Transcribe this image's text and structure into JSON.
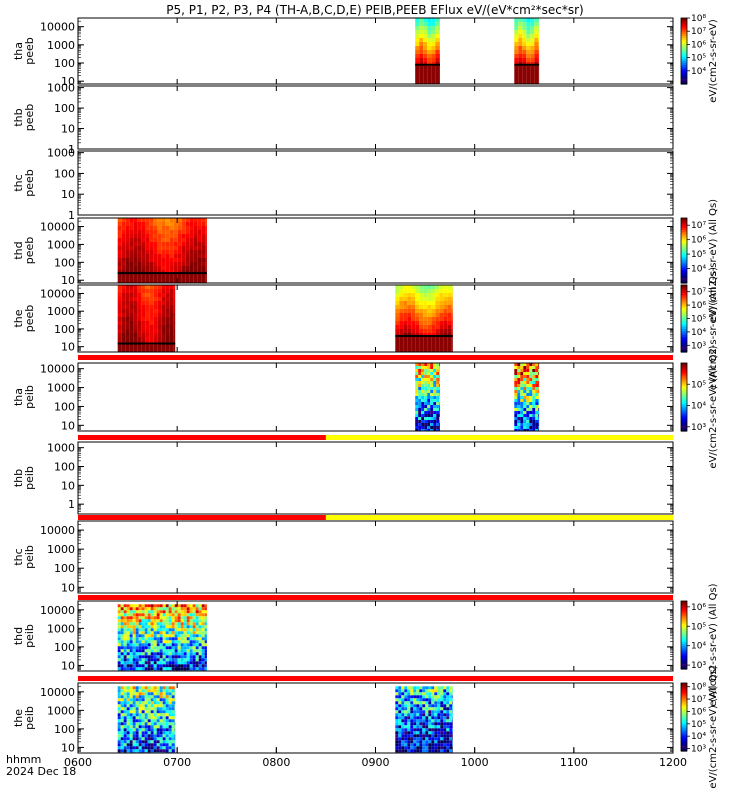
{
  "title": "P5, P1, P2, P3, P4 (TH-A,B,C,D,E) PEIB,PEEB EFlux eV/(eV*cm²*sec*sr)",
  "footer": {
    "axis_caption": "hhmm",
    "date": "2024 Dec 18"
  },
  "colors": {
    "bar_red": "#ff0000",
    "bar_yellow": "#ffff00",
    "no_data": "#ffffff"
  },
  "chart_data": {
    "type": "heatmap",
    "x_axis": {
      "ticks": [
        "0600",
        "0700",
        "0800",
        "0900",
        "1000",
        "1100",
        "1200"
      ],
      "range_hhmm": [
        "0600",
        "1200"
      ]
    },
    "y_scale": "log",
    "panels": [
      {
        "probe": "tha",
        "species": "peeb",
        "ylabel": "tha\npeeb",
        "ylim": [
          7,
          30000
        ],
        "yticks": [
          "10",
          "100",
          "1000",
          "10000"
        ],
        "colorbar": {
          "label": "eV/(cm2-s-sr-eV)",
          "ticks": [
            "10⁴",
            "10⁵",
            "10⁶",
            "10⁷",
            "10⁸"
          ],
          "range_exp": [
            3,
            8
          ]
        },
        "intervals": [
          {
            "start": 9.4,
            "end": 9.65,
            "lo": 7,
            "hi": 30000,
            "cut": 80,
            "level_low": 0.93,
            "level_high": 0.4,
            "pattern": "smooth"
          },
          {
            "start": 10.4,
            "end": 10.65,
            "lo": 7,
            "hi": 30000,
            "cut": 80,
            "level_low": 0.92,
            "level_high": 0.42,
            "pattern": "smooth"
          }
        ]
      },
      {
        "probe": "thb",
        "species": "peeb",
        "ylabel": "thb\npeeb",
        "ylim": [
          1,
          1200
        ],
        "yticks": [
          "1",
          "10",
          "100",
          "1000"
        ],
        "intervals": []
      },
      {
        "probe": "thc",
        "species": "peeb",
        "ylabel": "thc\npeeb",
        "ylim": [
          1,
          1200
        ],
        "yticks": [
          "1",
          "10",
          "100",
          "1000"
        ],
        "intervals": []
      },
      {
        "probe": "thd",
        "species": "peeb",
        "ylabel": "thd\npeeb",
        "ylim": [
          7,
          30000
        ],
        "yticks": [
          "10",
          "100",
          "1000",
          "10000"
        ],
        "colorbar": {
          "label": "eV/(cm2-s-sr-eV) (All Qs)",
          "ticks": [
            "10⁴",
            "10⁵",
            "10⁶",
            "10⁷"
          ],
          "range_exp": [
            3,
            7.5
          ]
        },
        "intervals": [
          {
            "start": 6.4,
            "end": 7.3,
            "lo": 7,
            "hi": 30000,
            "cut": 25,
            "level_low": 0.97,
            "level_high": 0.8,
            "pattern": "smooth"
          }
        ]
      },
      {
        "probe": "the",
        "species": "peeb",
        "ylabel": "the\npeeb",
        "ylim": [
          5,
          30000
        ],
        "yticks": [
          "10",
          "100",
          "1000",
          "10000"
        ],
        "colorbar": {
          "label": "eV/(cm2-s-sr-eV) (All Qs)",
          "ticks": [
            "10³",
            "10⁴",
            "10⁵",
            "10⁶",
            "10⁷"
          ],
          "range_exp": [
            2.5,
            7.5
          ]
        },
        "intervals": [
          {
            "start": 6.4,
            "end": 6.98,
            "lo": 5,
            "hi": 30000,
            "cut": 15,
            "level_low": 0.97,
            "level_high": 0.85,
            "pattern": "smooth"
          },
          {
            "start": 9.2,
            "end": 9.78,
            "lo": 5,
            "hi": 30000,
            "cut": 40,
            "level_low": 0.95,
            "level_high": 0.55,
            "pattern": "smooth"
          }
        ]
      },
      {
        "probe": "tha",
        "species": "peib",
        "ylabel": "tha\npeib",
        "ylim": [
          5,
          20000
        ],
        "yticks": [
          "10",
          "100",
          "1000",
          "10000"
        ],
        "colorbar": {
          "label": "eV/(cm2-s-sr-eV) (All Qs)",
          "ticks": [
            "10³",
            "10⁴",
            "10⁵"
          ],
          "range_exp": [
            2.8,
            6
          ]
        },
        "status_bar": [
          {
            "start": 6.0,
            "end": 12.0,
            "color": "red"
          }
        ],
        "intervals": [
          {
            "start": 9.4,
            "end": 9.65,
            "lo": 5,
            "hi": 20000,
            "cut": 0,
            "level_low": 0.1,
            "level_high": 0.7,
            "pattern": "speckle"
          },
          {
            "start": 10.4,
            "end": 10.65,
            "lo": 5,
            "hi": 20000,
            "cut": 0,
            "level_low": 0.15,
            "level_high": 0.85,
            "pattern": "speckle"
          }
        ]
      },
      {
        "probe": "thb",
        "species": "peib",
        "ylabel": "thb\npeib",
        "ylim": [
          0.3,
          2000
        ],
        "yticks": [
          "1",
          "10",
          "100",
          "1000"
        ],
        "status_bar": [
          {
            "start": 6.0,
            "end": 8.5,
            "color": "red"
          },
          {
            "start": 8.5,
            "end": 12.0,
            "color": "yellow"
          }
        ],
        "intervals": []
      },
      {
        "probe": "thc",
        "species": "peib",
        "ylabel": "thc\npeib",
        "ylim": [
          5,
          30000
        ],
        "yticks": [
          "10",
          "100",
          "1000",
          "10000"
        ],
        "status_bar": [
          {
            "start": 6.0,
            "end": 8.5,
            "color": "red"
          },
          {
            "start": 8.5,
            "end": 12.0,
            "color": "yellow"
          }
        ],
        "intervals": []
      },
      {
        "probe": "thd",
        "species": "peib",
        "ylabel": "thd\npeib",
        "ylim": [
          5,
          30000
        ],
        "yticks": [
          "10",
          "100",
          "1000",
          "10000"
        ],
        "colorbar": {
          "label": "eV/(cm2-s-sr-eV) (All Qs)",
          "ticks": [
            "10³",
            "10⁴",
            "10⁵",
            "10⁶"
          ],
          "range_exp": [
            2.8,
            6.3
          ]
        },
        "status_bar": [
          {
            "start": 6.0,
            "end": 12.0,
            "color": "red"
          }
        ],
        "intervals": [
          {
            "start": 6.4,
            "end": 7.3,
            "lo": 5,
            "hi": 20000,
            "cut": 0,
            "level_low": 0.15,
            "level_high": 0.75,
            "pattern": "speckle"
          }
        ]
      },
      {
        "probe": "the",
        "species": "peib",
        "ylabel": "the\npeib",
        "ylim": [
          5,
          30000
        ],
        "yticks": [
          "10",
          "100",
          "1000",
          "10000"
        ],
        "colorbar": {
          "label": "eV/(cm2-s-sr-eV) (All Qs)",
          "ticks": [
            "10³",
            "10⁴",
            "10⁵",
            "10⁶",
            "10⁷",
            "10⁸"
          ],
          "range_exp": [
            2.8,
            8.3
          ]
        },
        "status_bar": [
          {
            "start": 6.0,
            "end": 12.0,
            "color": "red"
          }
        ],
        "intervals": [
          {
            "start": 6.4,
            "end": 6.98,
            "lo": 5,
            "hi": 20000,
            "cut": 0,
            "level_low": 0.2,
            "level_high": 0.55,
            "pattern": "speckle"
          },
          {
            "start": 9.2,
            "end": 9.78,
            "lo": 5,
            "hi": 20000,
            "cut": 0,
            "level_low": 0.05,
            "level_high": 0.45,
            "pattern": "speckle"
          }
        ]
      }
    ]
  }
}
